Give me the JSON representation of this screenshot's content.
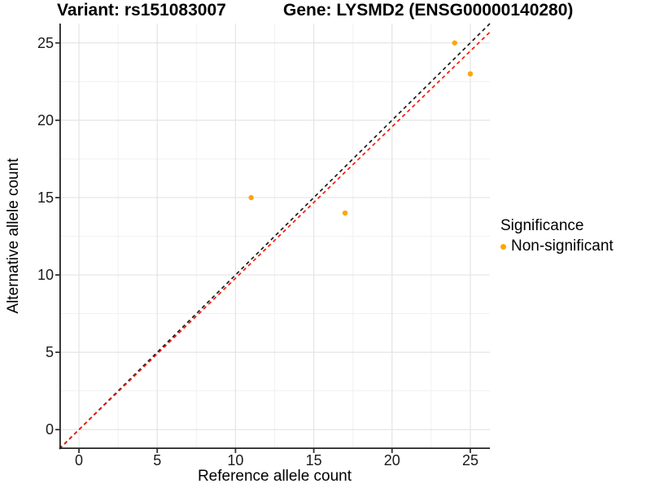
{
  "chart_data": {
    "type": "scatter",
    "title_left": "Variant: rs151083007",
    "title_right": "Gene: LYSMD2 (ENSG00000140280)",
    "xlabel": "Reference allele count",
    "ylabel": "Alternative allele count",
    "xlim": [
      -1.25,
      26.25
    ],
    "ylim": [
      -1.25,
      26.25
    ],
    "major_ticks": [
      0,
      5,
      10,
      15,
      20,
      25
    ],
    "minor_ticks": [
      2.5,
      7.5,
      12.5,
      17.5,
      22.5
    ],
    "grid": true,
    "series": [
      {
        "name": "Non-significant",
        "color": "#FFA500",
        "points": [
          [
            11,
            15
          ],
          [
            17,
            14
          ],
          [
            24,
            25
          ],
          [
            25,
            23
          ]
        ]
      }
    ],
    "ablines": [
      {
        "name": "identity-line",
        "slope": 1.0,
        "intercept": 0,
        "color": "#1a1a1a"
      },
      {
        "name": "fitted-line",
        "slope": 0.979,
        "intercept": 0,
        "color": "#ff1400"
      }
    ],
    "legend": {
      "title": "Significance",
      "position": "right",
      "items": [
        {
          "label": "Non-significant",
          "color": "#FFA500"
        }
      ]
    },
    "theme": {
      "grid_major": "#e4e4e4",
      "grid_minor": "#f1f1f1",
      "axis_line": "#222222",
      "tick_color": "#333333",
      "point_radius": 3.2,
      "dash": "4.5 4"
    }
  }
}
